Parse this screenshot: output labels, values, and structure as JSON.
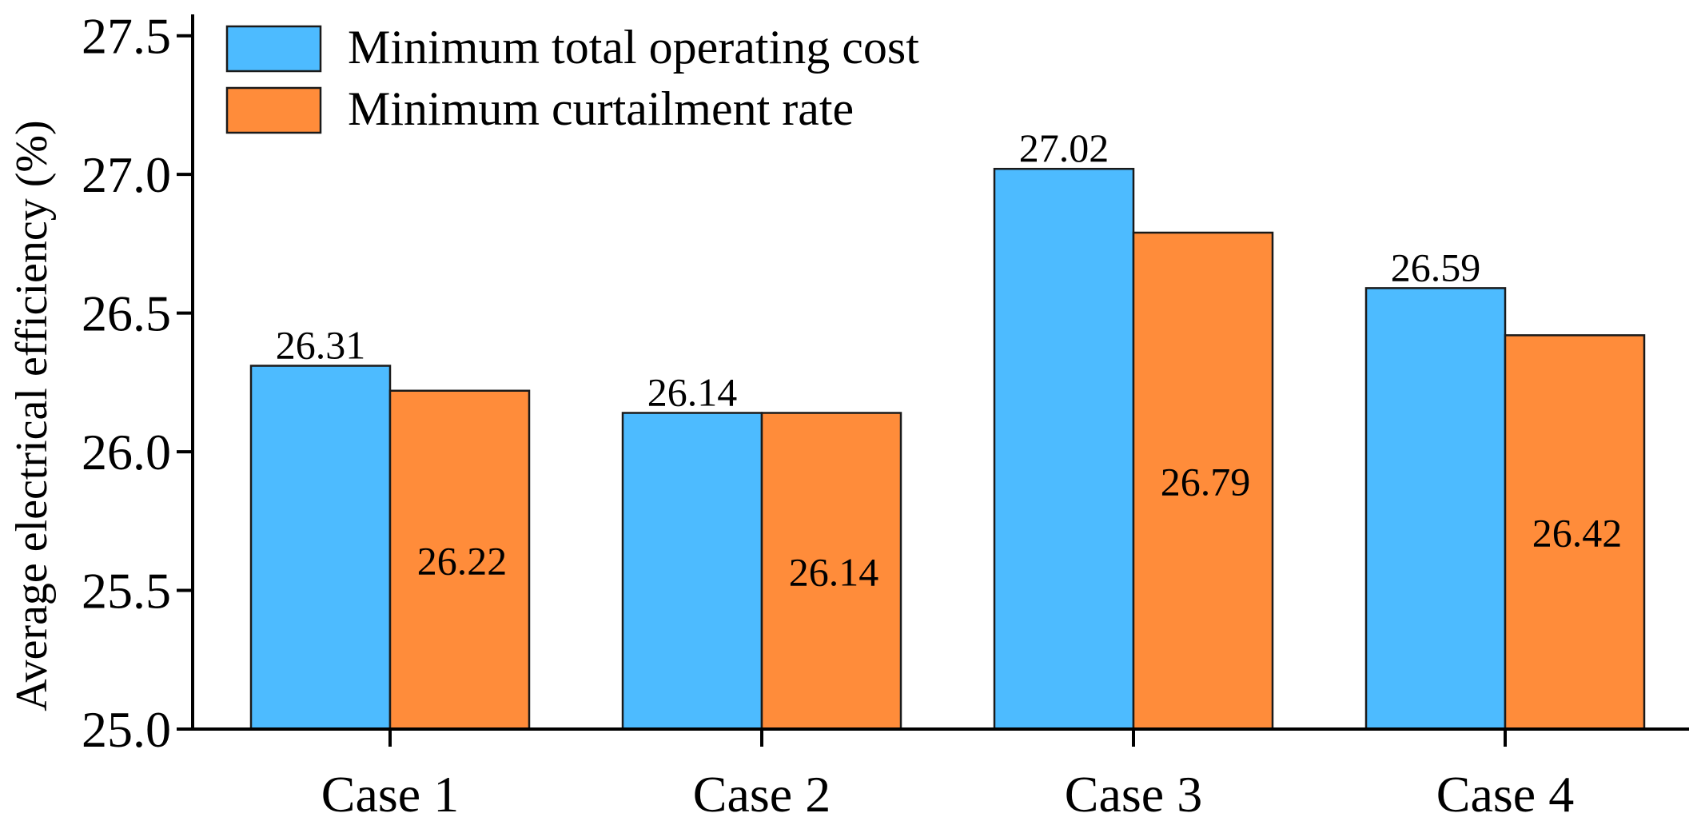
{
  "chart_data": {
    "type": "bar",
    "title": "",
    "xlabel": "",
    "ylabel": "Average electrical efficiency (%)",
    "categories": [
      "Case 1",
      "Case 2",
      "Case 3",
      "Case 4"
    ],
    "series": [
      {
        "name": "Minimum total operating cost",
        "color": "#4dbbff",
        "values": [
          26.31,
          26.14,
          27.02,
          26.59
        ],
        "labels": [
          "26.31",
          "26.14",
          "27.02",
          "26.59"
        ],
        "label_position": "above"
      },
      {
        "name": "Minimum curtailment rate",
        "color": "#ff8c3a",
        "values": [
          26.22,
          26.14,
          26.79,
          26.42
        ],
        "labels": [
          "26.22",
          "26.14",
          "26.79",
          "26.42"
        ],
        "label_position": "inside-middle"
      }
    ],
    "ylim": [
      25.0,
      27.6
    ],
    "yticks": [
      25.0,
      25.5,
      26.0,
      26.5,
      27.0,
      27.5
    ],
    "ytick_labels": [
      "25.0",
      "25.5",
      "26.0",
      "26.5",
      "27.0",
      "27.5"
    ],
    "grid": false,
    "legend": "top-left"
  }
}
